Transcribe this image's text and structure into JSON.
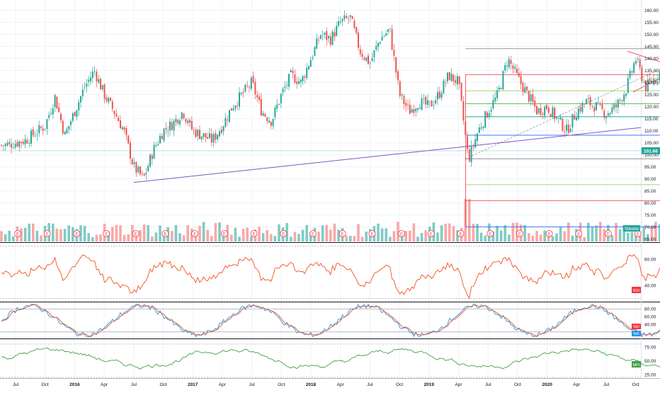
{
  "chart_data": [
    {
      "type": "candlestick",
      "panel": "price",
      "x_ticks": [
        "Jul",
        "Oct",
        "2016",
        "Apr",
        "Jul",
        "Oct",
        "2017",
        "Apr",
        "Jul",
        "Oct",
        "2018",
        "Apr",
        "Jul",
        "Oct",
        "2019",
        "Apr",
        "Jul",
        "Oct",
        "2020",
        "Apr",
        "Jul",
        "Oct"
      ],
      "y_ticks": [
        "160.00",
        "155.00",
        "150.00",
        "145.00",
        "140.00",
        "135.00",
        "130.00",
        "125.00",
        "120.00",
        "115.00",
        "110.00",
        "105.00",
        "100.00",
        "95.00",
        "90.00",
        "85.00",
        "80.00",
        "75.00",
        "70.00",
        "65.00"
      ],
      "ylim": [
        65,
        162
      ],
      "current_price": {
        "label": "101.66",
        "value": 101.66,
        "color": "#26a69a"
      },
      "volume_label": "Volume",
      "earnings_marker": "E",
      "fibonacci": [
        {
          "label": "0.00%(144.06)",
          "value": 144.06,
          "color": "#787b86"
        },
        {
          "label": "23.60%(133.27)",
          "value": 133.27,
          "color": "#f23645"
        },
        {
          "label": "38.20%(126.59)",
          "value": 126.59,
          "color": "#8bc34a"
        },
        {
          "label": "50.00%(121.20)",
          "value": 121.2,
          "color": "#4caf50"
        },
        {
          "label": "61.80%(115.81)",
          "value": 115.81,
          "color": "#089981"
        },
        {
          "label": "78.60%(108.13)",
          "value": 108.13,
          "color": "#2962ff"
        },
        {
          "label": "100.00%(98.34)",
          "value": 98.34,
          "color": "#787b86"
        },
        {
          "label": "123.60%(87.56)",
          "value": 87.56,
          "color": "#8bc34a"
        },
        {
          "label": "138.20%(80.88)",
          "value": 80.88,
          "color": "#f23645"
        },
        {
          "label": "161.80%(70.09)",
          "value": 70.09,
          "color": "#2962ff"
        }
      ],
      "price_path": [
        [
          "2015-06",
          104
        ],
        [
          "2015-08",
          106
        ],
        [
          "2015-10",
          112
        ],
        [
          "2015-11",
          124
        ],
        [
          "2015-12",
          108
        ],
        [
          "2016-01",
          118
        ],
        [
          "2016-02",
          128
        ],
        [
          "2016-03",
          135
        ],
        [
          "2016-04",
          125
        ],
        [
          "2016-05",
          118
        ],
        [
          "2016-06",
          110
        ],
        [
          "2016-07",
          95
        ],
        [
          "2016-08",
          90
        ],
        [
          "2016-09",
          102
        ],
        [
          "2016-10",
          110
        ],
        [
          "2016-11",
          113
        ],
        [
          "2016-12",
          118
        ],
        [
          "2017-01",
          110
        ],
        [
          "2017-02",
          108
        ],
        [
          "2017-03",
          106
        ],
        [
          "2017-04",
          112
        ],
        [
          "2017-05",
          120
        ],
        [
          "2017-06",
          125
        ],
        [
          "2017-07",
          130
        ],
        [
          "2017-08",
          118
        ],
        [
          "2017-09",
          114
        ],
        [
          "2017-10",
          125
        ],
        [
          "2017-11",
          133
        ],
        [
          "2017-12",
          130
        ],
        [
          "2018-01",
          140
        ],
        [
          "2018-02",
          150
        ],
        [
          "2018-03",
          148
        ],
        [
          "2018-04",
          155
        ],
        [
          "2018-05",
          157
        ],
        [
          "2018-06",
          143
        ],
        [
          "2018-07",
          138
        ],
        [
          "2018-08",
          148
        ],
        [
          "2018-09",
          152
        ],
        [
          "2018-10",
          125
        ],
        [
          "2018-11",
          118
        ],
        [
          "2018-12",
          122
        ],
        [
          "2019-01",
          120
        ],
        [
          "2019-02",
          125
        ],
        [
          "2019-03",
          133
        ],
        [
          "2019-04",
          130
        ],
        [
          "2019-05",
          98
        ],
        [
          "2019-06",
          110
        ],
        [
          "2019-07",
          118
        ],
        [
          "2019-08",
          125
        ],
        [
          "2019-09",
          140
        ],
        [
          "2019-10",
          132
        ],
        [
          "2019-11",
          125
        ],
        [
          "2019-12",
          118
        ],
        [
          "2020-01",
          120
        ],
        [
          "2020-02",
          115
        ],
        [
          "2020-03",
          110
        ],
        [
          "2020-04",
          118
        ],
        [
          "2020-05",
          122
        ],
        [
          "2020-06",
          120
        ],
        [
          "2020-07",
          117
        ],
        [
          "2020-08",
          120
        ],
        [
          "2020-09",
          127
        ],
        [
          "2020-10",
          140
        ],
        [
          "2020-11",
          128
        ],
        [
          "2020-12",
          132
        ],
        [
          "2021-01",
          138
        ],
        [
          "2021-02",
          130
        ],
        [
          "2021-03",
          96
        ],
        [
          "2021-04",
          101.66
        ]
      ],
      "series": [
        {
          "name": "Volume",
          "type": "bar"
        }
      ]
    },
    {
      "type": "line",
      "panel": "RSI",
      "label": "RSI",
      "y_ticks": [
        "60.00",
        "40.00"
      ],
      "ylim": [
        28,
        72
      ],
      "color": "#f4511e"
    },
    {
      "type": "line",
      "panel": "Stochastic",
      "labels": [
        "%D",
        "%K"
      ],
      "y_ticks": [
        "80.00",
        "60.00",
        "40.00"
      ],
      "ylim": [
        5,
        95
      ],
      "colors": [
        "#f4511e",
        "#2196f3"
      ]
    },
    {
      "type": "line",
      "panel": "MFI",
      "label": "MFI",
      "y_ticks": [
        "75.00",
        "50.00",
        "25.00"
      ],
      "ylim": [
        20,
        85
      ],
      "color": "#43a047"
    }
  ]
}
